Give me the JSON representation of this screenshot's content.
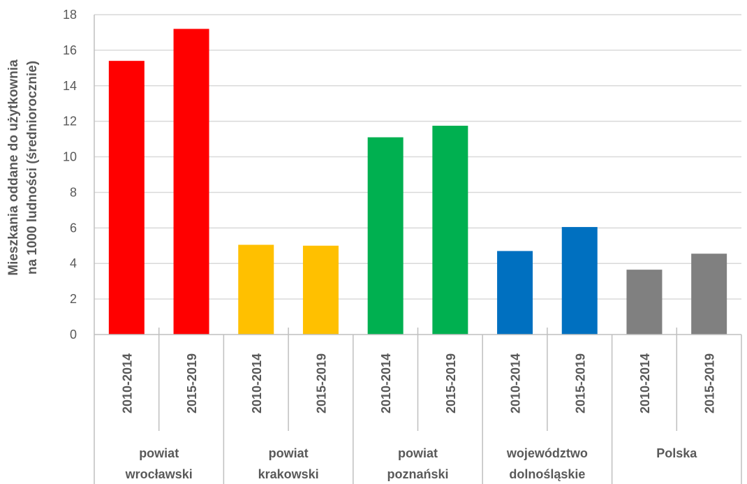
{
  "chart_data": {
    "type": "bar",
    "title": "",
    "xlabel": "",
    "ylabel": [
      "Mieszkania oddane do użytkownia",
      "na 1000 ludności (średniorocznie)"
    ],
    "ylim": [
      0,
      18
    ],
    "yticks": [
      0,
      2,
      4,
      6,
      8,
      10,
      12,
      14,
      16,
      18
    ],
    "grid": true,
    "legend": "none",
    "groups": [
      {
        "label": [
          "powiat",
          "wrocławski"
        ],
        "color": "#FF0000",
        "bars": [
          {
            "category": "2010-2014",
            "value": 15.4
          },
          {
            "category": "2015-2019",
            "value": 17.2
          }
        ]
      },
      {
        "label": [
          "powiat",
          "krakowski"
        ],
        "color": "#FFC000",
        "bars": [
          {
            "category": "2010-2014",
            "value": 5.05
          },
          {
            "category": "2015-2019",
            "value": 5.0
          }
        ]
      },
      {
        "label": [
          "powiat",
          "poznański"
        ],
        "color": "#00B050",
        "bars": [
          {
            "category": "2010-2014",
            "value": 11.1
          },
          {
            "category": "2015-2019",
            "value": 11.75
          }
        ]
      },
      {
        "label": [
          "województwo",
          "dolnośląskie"
        ],
        "color": "#0070C0",
        "bars": [
          {
            "category": "2010-2014",
            "value": 4.7
          },
          {
            "category": "2015-2019",
            "value": 6.05
          }
        ]
      },
      {
        "label": [
          "Polska"
        ],
        "color": "#808080",
        "bars": [
          {
            "category": "2010-2014",
            "value": 3.65
          },
          {
            "category": "2015-2019",
            "value": 4.55
          }
        ]
      }
    ],
    "colors": {
      "grid": "#D9D9D9",
      "axis": "#BFBFBF",
      "text": "#595959"
    }
  }
}
